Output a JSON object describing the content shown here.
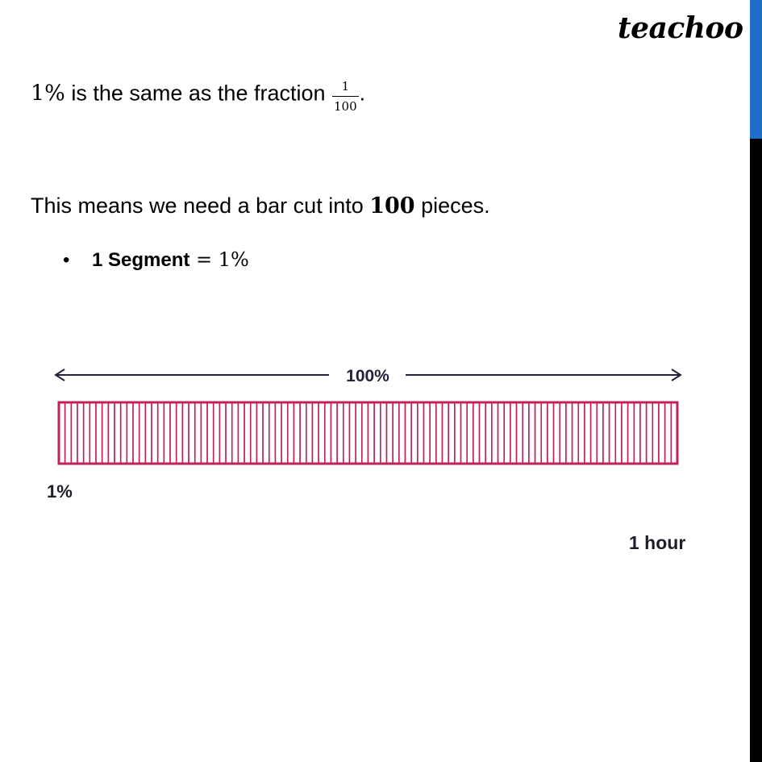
{
  "logo": "teachoo",
  "line1": {
    "math_prefix": "1%",
    "text": " is the same as the fraction ",
    "fraction": {
      "numerator": "1",
      "denominator": "100"
    },
    "suffix": "."
  },
  "line2": {
    "before": "This means we need a bar cut into ",
    "number": "100",
    "after": " pieces."
  },
  "bullet": {
    "symbol": "•",
    "label": "1 Segment",
    "equation": " = 1%"
  },
  "figure": {
    "total_label": "100%",
    "segments": 100,
    "start_label": "1%",
    "end_label": "1 hour",
    "colors": {
      "bar": "#c0215a",
      "arrow": "#23233a"
    }
  },
  "colors": {
    "accent_blue": "#1f6fc8",
    "side_bar": "#000000"
  }
}
